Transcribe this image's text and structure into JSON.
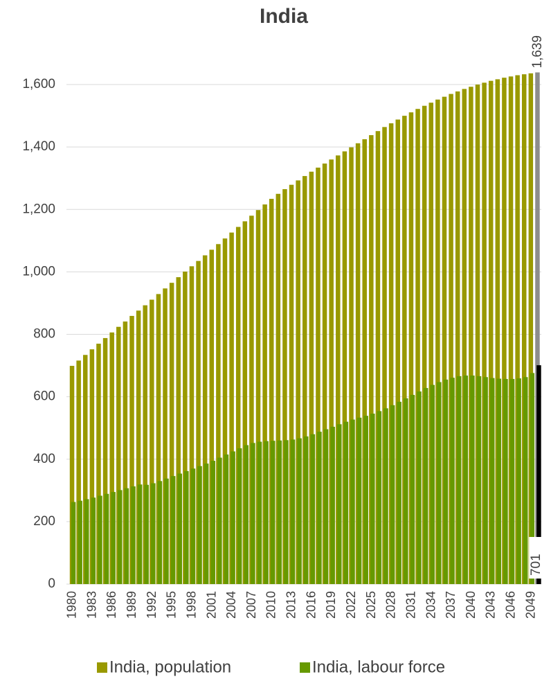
{
  "chart_data": {
    "type": "bar",
    "title": "India",
    "categories": [
      "1980",
      null,
      null,
      "1983",
      null,
      null,
      "1986",
      null,
      null,
      "1989",
      null,
      null,
      "1992",
      null,
      null,
      "1995",
      null,
      null,
      "1998",
      null,
      null,
      "2001",
      null,
      null,
      "2004",
      null,
      null,
      "2007",
      null,
      null,
      "2010",
      null,
      null,
      "2013",
      null,
      null,
      "2016",
      null,
      null,
      "2019",
      null,
      null,
      "2022",
      null,
      null,
      "2025",
      null,
      null,
      "2028",
      null,
      null,
      "2031",
      null,
      null,
      "2034",
      null,
      null,
      "2037",
      null,
      null,
      "2040",
      null,
      null,
      "2043",
      null,
      null,
      "2046",
      null,
      null,
      "2049",
      null
    ],
    "series": [
      {
        "name": "India, population",
        "color": "#999900",
        "last_color": "#8c8c8c",
        "values": [
          699,
          716,
          734,
          752,
          770,
          788,
          806,
          824,
          841,
          859,
          876,
          893,
          911,
          929,
          947,
          965,
          983,
          1001,
          1018,
          1035,
          1053,
          1071,
          1089,
          1107,
          1126,
          1144,
          1162,
          1180,
          1198,
          1216,
          1234,
          1250,
          1265,
          1279,
          1293,
          1307,
          1321,
          1334,
          1347,
          1360,
          1373,
          1386,
          1399,
          1412,
          1425,
          1438,
          1451,
          1464,
          1476,
          1488,
          1500,
          1511,
          1522,
          1532,
          1542,
          1552,
          1561,
          1570,
          1578,
          1586,
          1593,
          1600,
          1606,
          1612,
          1617,
          1622,
          1626,
          1630,
          1633,
          1636,
          1639
        ],
        "value_labels": [
          null,
          null,
          null,
          null,
          null,
          null,
          null,
          null,
          null,
          null,
          null,
          null,
          null,
          null,
          null,
          null,
          null,
          null,
          null,
          null,
          null,
          null,
          null,
          null,
          null,
          null,
          null,
          null,
          null,
          null,
          null,
          null,
          null,
          null,
          null,
          null,
          null,
          null,
          null,
          null,
          null,
          null,
          null,
          null,
          null,
          null,
          null,
          null,
          null,
          null,
          null,
          null,
          null,
          null,
          null,
          null,
          null,
          null,
          null,
          null,
          null,
          null,
          null,
          null,
          null,
          null,
          null,
          null,
          null,
          null,
          "1,639"
        ]
      },
      {
        "name": "India, labour force",
        "color": "#669900",
        "last_color": "#000000",
        "values": [
          263,
          267,
          272,
          277,
          283,
          289,
          295,
          301,
          307,
          313,
          319,
          318,
          323,
          330,
          338,
          346,
          354,
          362,
          370,
          378,
          386,
          395,
          405,
          415,
          425,
          435,
          445,
          452,
          456,
          458,
          459,
          460,
          461,
          463,
          467,
          473,
          480,
          488,
          496,
          504,
          512,
          520,
          527,
          533,
          539,
          546,
          554,
          563,
          573,
          584,
          595,
          606,
          617,
          628,
          638,
          647,
          655,
          661,
          666,
          668,
          668,
          666,
          663,
          660,
          658,
          657,
          657,
          659,
          663,
          676,
          701
        ]
      }
    ],
    "ylim": [
      0,
      1700
    ],
    "yticks": [
      0,
      200,
      400,
      600,
      800,
      {
        "value": 1000,
        "label": "1,000"
      },
      {
        "value": 1200,
        "label": "1,200"
      },
      {
        "value": 1400,
        "label": "1,400"
      },
      {
        "value": 1600,
        "label": "1,600"
      }
    ],
    "grid": true
  }
}
